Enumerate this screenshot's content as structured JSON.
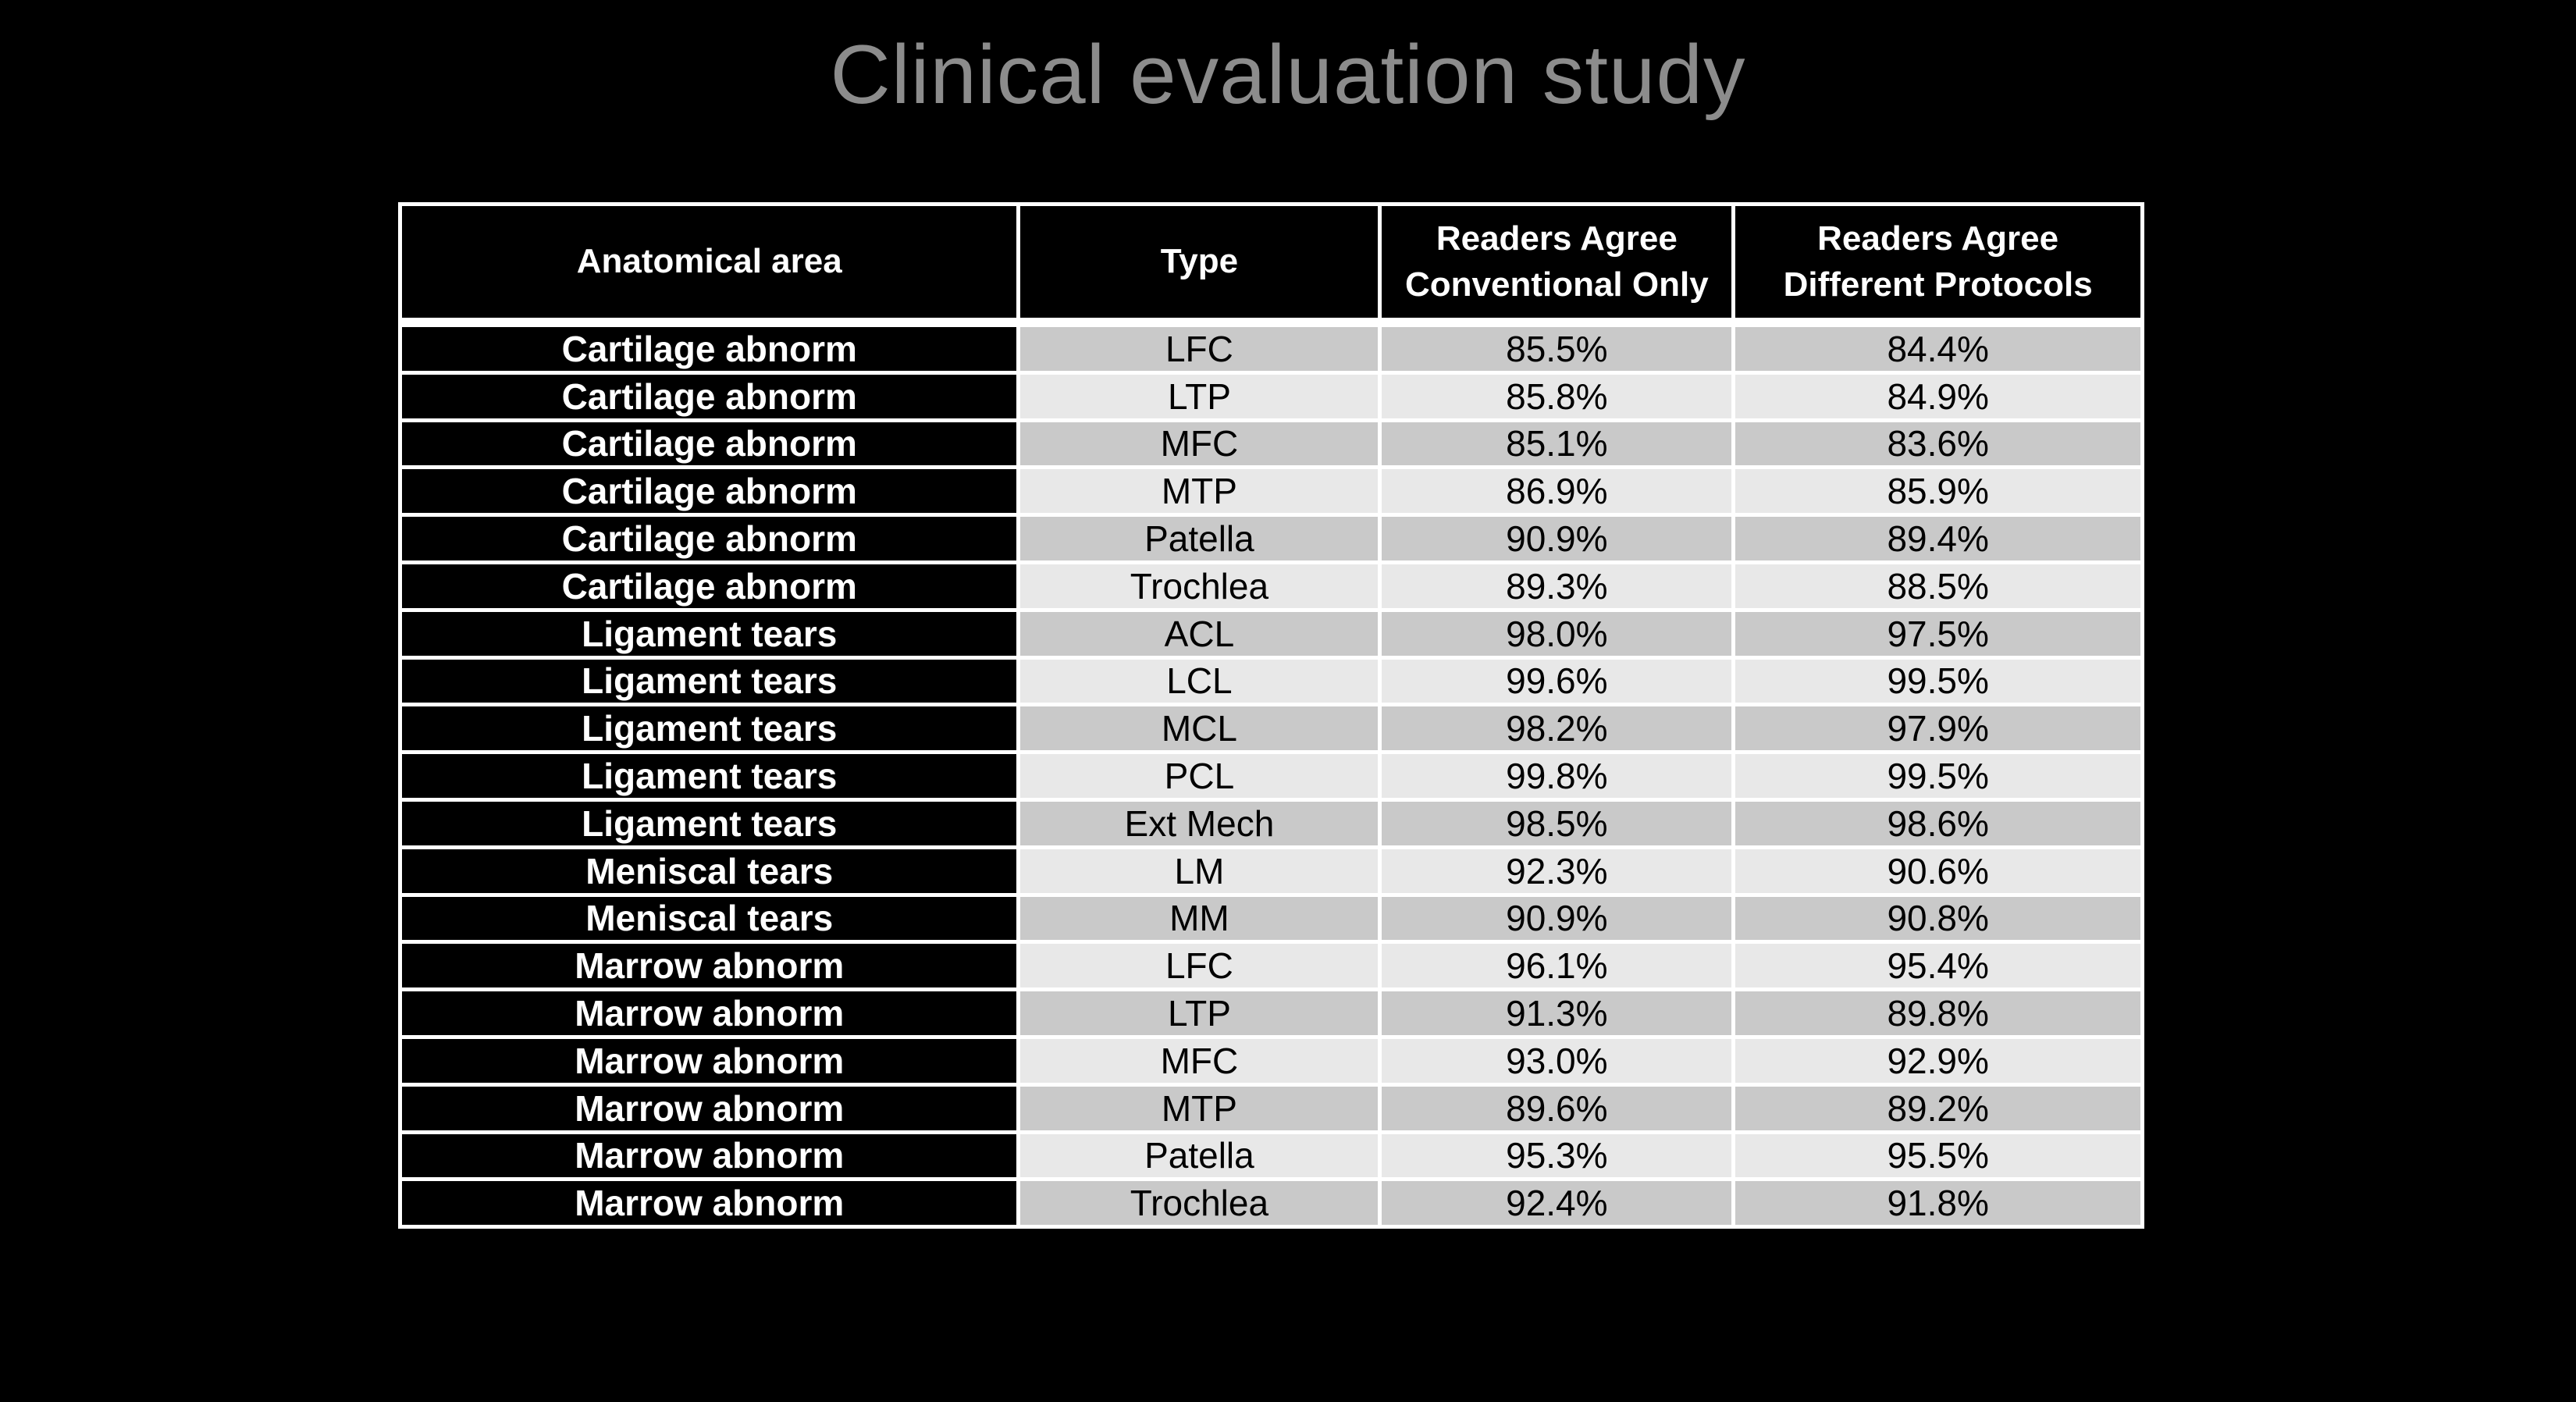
{
  "slide": {
    "title": "Clinical evaluation study",
    "title_color": "#8c8c8c",
    "background_color": "#000000"
  },
  "table": {
    "grid_color": "#ffffff",
    "header_bg": "#000000",
    "area_column_bg": "#000000",
    "row_shade_dark": "#c9c9c9",
    "row_shade_light": "#e8e8e8",
    "columns": [
      {
        "id": "anatomical-area",
        "label": "Anatomical area"
      },
      {
        "id": "type",
        "label": "Type"
      },
      {
        "id": "readers-agree-conventional-only",
        "label": "Readers Agree\nConventional Only"
      },
      {
        "id": "readers-agree-different-protocols",
        "label": "Readers Agree\nDifferent Protocols"
      }
    ],
    "rows": [
      {
        "area": "Cartilage abnorm",
        "type": "LFC",
        "conventional_only": "85.5%",
        "different_protocols": "84.4%"
      },
      {
        "area": "Cartilage abnorm",
        "type": "LTP",
        "conventional_only": "85.8%",
        "different_protocols": "84.9%"
      },
      {
        "area": "Cartilage abnorm",
        "type": "MFC",
        "conventional_only": "85.1%",
        "different_protocols": "83.6%"
      },
      {
        "area": "Cartilage abnorm",
        "type": "MTP",
        "conventional_only": "86.9%",
        "different_protocols": "85.9%"
      },
      {
        "area": "Cartilage abnorm",
        "type": "Patella",
        "conventional_only": "90.9%",
        "different_protocols": "89.4%"
      },
      {
        "area": "Cartilage abnorm",
        "type": "Trochlea",
        "conventional_only": "89.3%",
        "different_protocols": "88.5%"
      },
      {
        "area": "Ligament tears",
        "type": "ACL",
        "conventional_only": "98.0%",
        "different_protocols": "97.5%"
      },
      {
        "area": "Ligament tears",
        "type": "LCL",
        "conventional_only": "99.6%",
        "different_protocols": "99.5%"
      },
      {
        "area": "Ligament tears",
        "type": "MCL",
        "conventional_only": "98.2%",
        "different_protocols": "97.9%"
      },
      {
        "area": "Ligament tears",
        "type": "PCL",
        "conventional_only": "99.8%",
        "different_protocols": "99.5%"
      },
      {
        "area": "Ligament tears",
        "type": "Ext Mech",
        "conventional_only": "98.5%",
        "different_protocols": "98.6%"
      },
      {
        "area": "Meniscal tears",
        "type": "LM",
        "conventional_only": "92.3%",
        "different_protocols": "90.6%"
      },
      {
        "area": "Meniscal tears",
        "type": "MM",
        "conventional_only": "90.9%",
        "different_protocols": "90.8%"
      },
      {
        "area": "Marrow abnorm",
        "type": "LFC",
        "conventional_only": "96.1%",
        "different_protocols": "95.4%"
      },
      {
        "area": "Marrow abnorm",
        "type": "LTP",
        "conventional_only": "91.3%",
        "different_protocols": "89.8%"
      },
      {
        "area": "Marrow abnorm",
        "type": "MFC",
        "conventional_only": "93.0%",
        "different_protocols": "92.9%"
      },
      {
        "area": "Marrow abnorm",
        "type": "MTP",
        "conventional_only": "89.6%",
        "different_protocols": "89.2%"
      },
      {
        "area": "Marrow abnorm",
        "type": "Patella",
        "conventional_only": "95.3%",
        "different_protocols": "95.5%"
      },
      {
        "area": "Marrow abnorm",
        "type": "Trochlea",
        "conventional_only": "92.4%",
        "different_protocols": "91.8%"
      }
    ]
  },
  "chart_data": {
    "type": "table",
    "title": "Clinical evaluation study",
    "columns": [
      "Anatomical area",
      "Type",
      "Readers Agree Conventional Only",
      "Readers Agree Different Protocols"
    ],
    "rows": [
      [
        "Cartilage abnorm",
        "LFC",
        "85.5%",
        "84.4%"
      ],
      [
        "Cartilage abnorm",
        "LTP",
        "85.8%",
        "84.9%"
      ],
      [
        "Cartilage abnorm",
        "MFC",
        "85.1%",
        "83.6%"
      ],
      [
        "Cartilage abnorm",
        "MTP",
        "86.9%",
        "85.9%"
      ],
      [
        "Cartilage abnorm",
        "Patella",
        "90.9%",
        "89.4%"
      ],
      [
        "Cartilage abnorm",
        "Trochlea",
        "89.3%",
        "88.5%"
      ],
      [
        "Ligament tears",
        "ACL",
        "98.0%",
        "97.5%"
      ],
      [
        "Ligament tears",
        "LCL",
        "99.6%",
        "99.5%"
      ],
      [
        "Ligament tears",
        "MCL",
        "98.2%",
        "97.9%"
      ],
      [
        "Ligament tears",
        "PCL",
        "99.8%",
        "99.5%"
      ],
      [
        "Ligament tears",
        "Ext Mech",
        "98.5%",
        "98.6%"
      ],
      [
        "Meniscal tears",
        "LM",
        "92.3%",
        "90.6%"
      ],
      [
        "Meniscal tears",
        "MM",
        "90.9%",
        "90.8%"
      ],
      [
        "Marrow abnorm",
        "LFC",
        "96.1%",
        "95.4%"
      ],
      [
        "Marrow abnorm",
        "LTP",
        "91.3%",
        "89.8%"
      ],
      [
        "Marrow abnorm",
        "MFC",
        "93.0%",
        "92.9%"
      ],
      [
        "Marrow abnorm",
        "MTP",
        "89.6%",
        "89.2%"
      ],
      [
        "Marrow abnorm",
        "Patella",
        "95.3%",
        "95.5%"
      ],
      [
        "Marrow abnorm",
        "Trochlea",
        "92.4%",
        "91.8%"
      ]
    ]
  }
}
